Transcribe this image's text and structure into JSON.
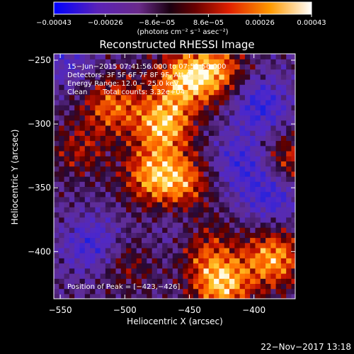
{
  "chart_data": {
    "type": "heatmap",
    "title": "Reconstructed RHESSI Image",
    "xlabel": "Heliocentric X (arcsec)",
    "ylabel": "Heliocentric Y (arcsec)",
    "xlim": [
      -555,
      -368
    ],
    "ylim": [
      -437,
      -245
    ],
    "x_ticks": [
      -550,
      -500,
      -450,
      -400
    ],
    "x_tick_labels": [
      "−550",
      "−500",
      "−450",
      "−400"
    ],
    "y_ticks": [
      -250,
      -300,
      -350,
      -400
    ],
    "y_tick_labels": [
      "−250",
      "−300",
      "−350",
      "−400"
    ],
    "colorbar": {
      "range": [
        -0.00043,
        0.00043
      ],
      "tick_labels": [
        "−0.00043",
        "−0.00026",
        "−8.6e−05",
        "8.6e−05",
        "0.00026",
        "0.00043"
      ],
      "units_label": "(photons cm⁻² s⁻¹ asec⁻²)",
      "stops": [
        "#0000ff",
        "#7b2aa8",
        "#000000",
        "#b01010",
        "#ff5a00",
        "#ffc020",
        "#ffffff"
      ]
    },
    "annotations": {
      "time_range": "15−Jun−2015 07:41:56.000 to 07:51:56.000",
      "detectors": "Detectors: 3F 5F 6F 7F 8F 9F, Att 0",
      "energy": "Energy Range: 12.0 − 25.0 keV",
      "clean": "Clean",
      "total_counts": "Total counts: 3.32e+04",
      "peak": "Position of Peak = [−423,−426]"
    },
    "hot_regions": [
      {
        "x": -470,
        "y": -300,
        "level": 0.95
      },
      {
        "x": -455,
        "y": -265,
        "level": 0.85
      },
      {
        "x": -430,
        "y": -258,
        "level": 0.8
      },
      {
        "x": -510,
        "y": -285,
        "level": 0.7
      },
      {
        "x": -480,
        "y": -340,
        "level": 0.75
      },
      {
        "x": -455,
        "y": -345,
        "level": 0.7
      },
      {
        "x": -425,
        "y": -425,
        "level": 1.0
      },
      {
        "x": -385,
        "y": -405,
        "level": 0.9
      },
      {
        "x": -372,
        "y": -330,
        "level": 0.6
      },
      {
        "x": -440,
        "y": -395,
        "level": 0.55
      },
      {
        "x": -535,
        "y": -320,
        "level": 0.4
      },
      {
        "x": -500,
        "y": -410,
        "level": 0.35
      }
    ],
    "cold_regions": [
      {
        "x": -395,
        "y": -285,
        "level": -0.6
      },
      {
        "x": -410,
        "y": -330,
        "level": -0.5
      },
      {
        "x": -525,
        "y": -395,
        "level": -0.55
      },
      {
        "x": -385,
        "y": -355,
        "level": -0.6
      },
      {
        "x": -545,
        "y": -250,
        "level": -0.35
      },
      {
        "x": -455,
        "y": -385,
        "level": -0.3
      }
    ]
  },
  "footer": {
    "date": "22−Nov−2017 13:18"
  }
}
